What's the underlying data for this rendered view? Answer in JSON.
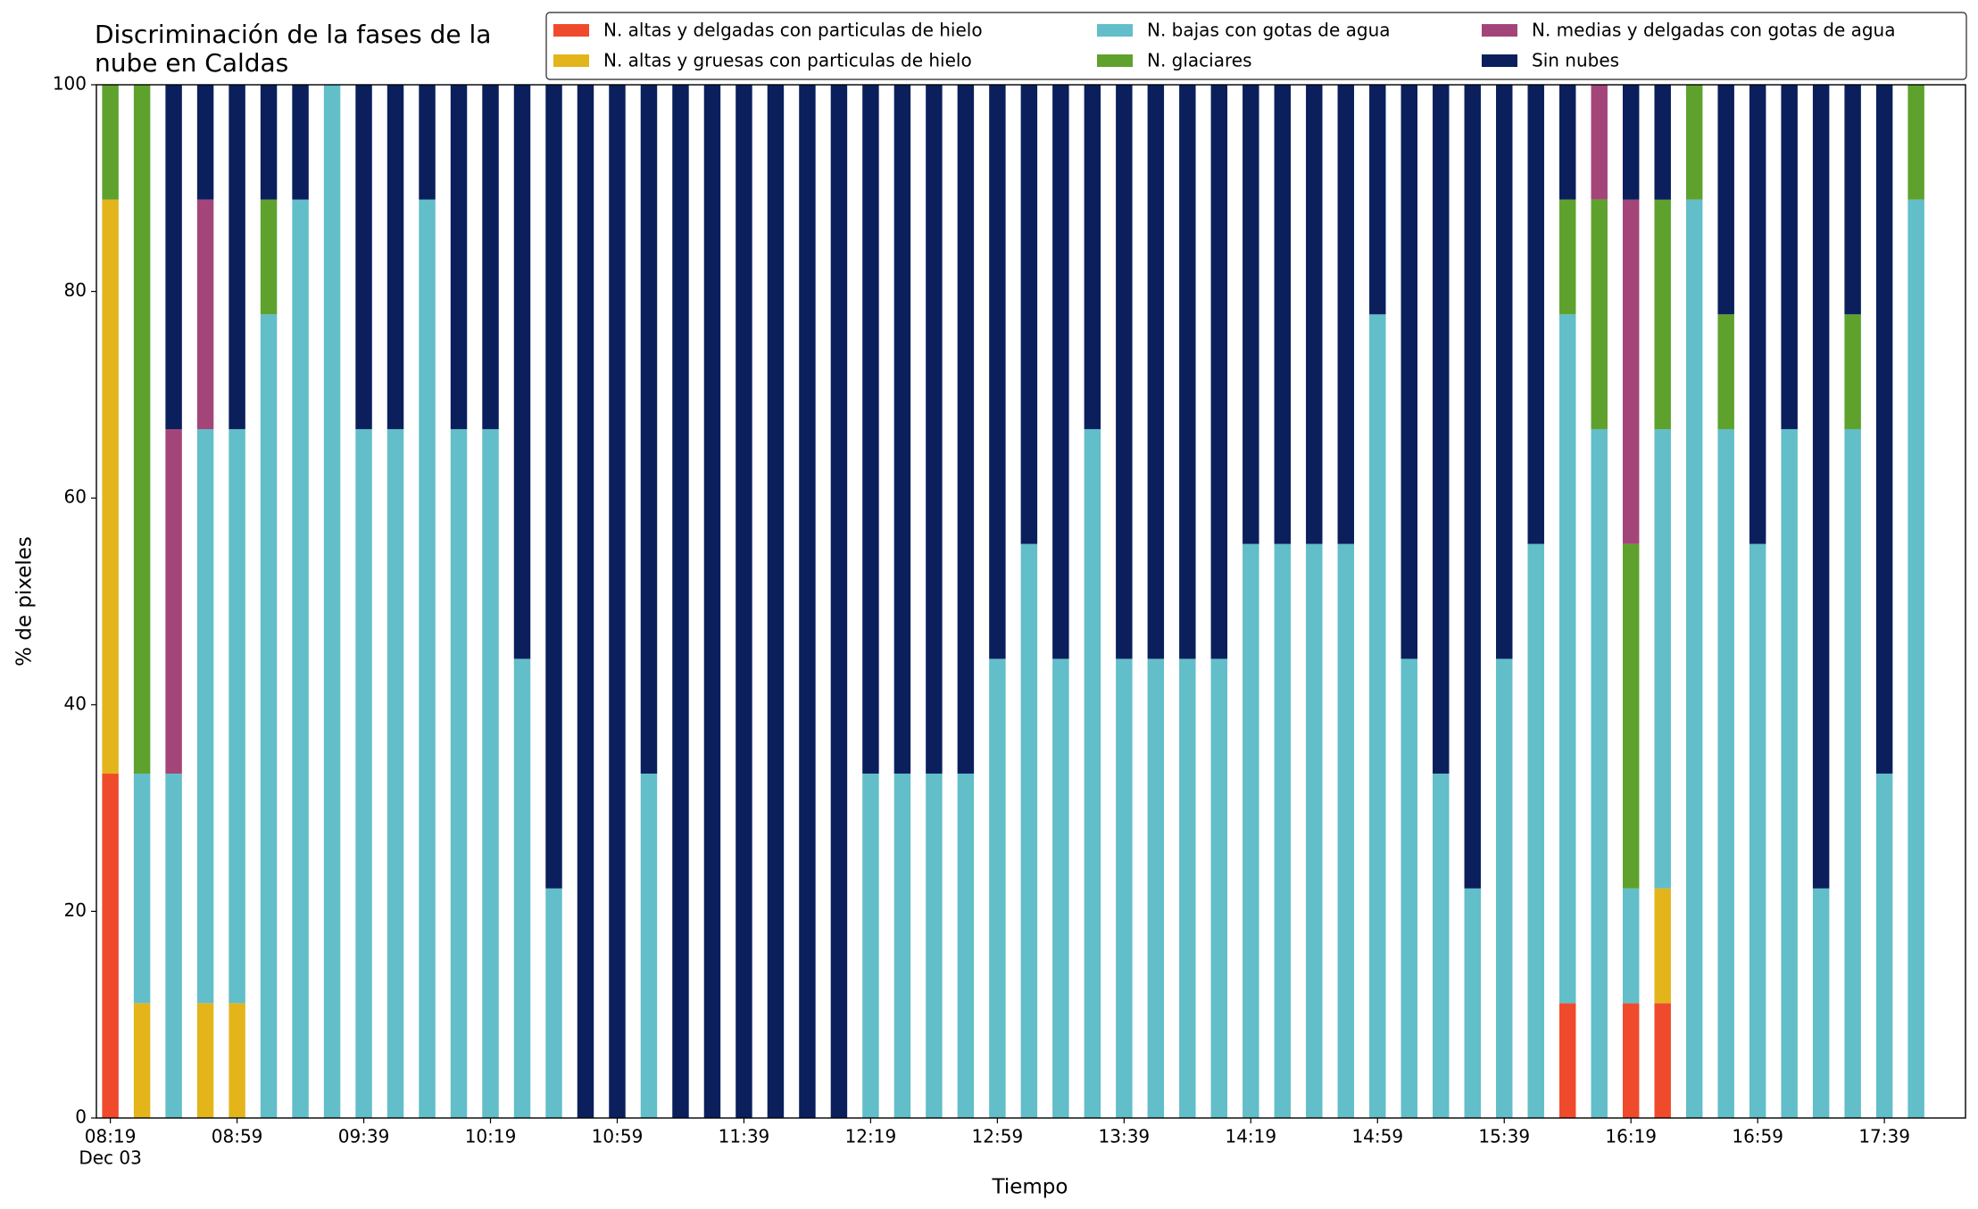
{
  "chart_data": {
    "type": "stacked_bar",
    "title": "Discriminación de la fases de la\nnube en Caldas",
    "x_label": "Tiempo",
    "y_label": "% de pixeles",
    "date_label": "Dec 03",
    "categories": [
      "08:19",
      null,
      null,
      null,
      "08:59",
      null,
      null,
      null,
      "09:39",
      null,
      null,
      null,
      "10:19",
      null,
      null,
      null,
      "10:59",
      null,
      null,
      null,
      "11:39",
      null,
      null,
      null,
      "12:19",
      null,
      null,
      null,
      "12:59",
      null,
      null,
      null,
      "13:39",
      null,
      null,
      null,
      "14:19",
      null,
      null,
      null,
      "14:59",
      null,
      null,
      null,
      "15:39",
      null,
      null,
      null,
      "16:19",
      null,
      null,
      null,
      "16:59",
      null,
      null,
      null,
      "17:39",
      null
    ],
    "ylim": [
      0,
      100
    ],
    "yticks": [
      0,
      20,
      40,
      60,
      80,
      100
    ],
    "series": [
      {
        "name": "N. altas y delgadas con particulas de hielo",
        "color": "#f04a2d",
        "values": [
          33.33,
          0,
          0,
          0,
          0,
          0,
          0,
          0,
          0,
          0,
          0,
          0,
          0,
          0,
          0,
          0,
          0,
          0,
          0,
          0,
          0,
          0,
          0,
          0,
          0,
          0,
          0,
          0,
          0,
          0,
          0,
          0,
          0,
          0,
          0,
          0,
          0,
          0,
          0,
          0,
          0,
          0,
          0,
          0,
          0,
          0,
          11.11,
          0,
          11.11,
          11.11,
          0,
          0,
          0,
          0,
          0,
          0,
          0,
          0
        ]
      },
      {
        "name": "N. altas y gruesas con particulas de hielo",
        "color": "#e3b51b",
        "values": [
          55.56,
          11.11,
          0,
          11.11,
          11.11,
          0,
          0,
          0,
          0,
          0,
          0,
          0,
          0,
          0,
          0,
          0,
          0,
          0,
          0,
          0,
          0,
          0,
          0,
          0,
          0,
          0,
          0,
          0,
          0,
          0,
          0,
          0,
          0,
          0,
          0,
          0,
          0,
          0,
          0,
          0,
          0,
          0,
          0,
          0,
          0,
          0,
          0,
          0,
          0,
          11.11,
          0,
          0,
          0,
          0,
          0,
          0,
          0,
          0
        ]
      },
      {
        "name": "N. bajas con gotas de agua",
        "color": "#62bec9",
        "values": [
          0,
          22.22,
          33.33,
          55.56,
          55.56,
          77.78,
          88.89,
          100,
          66.67,
          66.67,
          88.89,
          66.67,
          66.67,
          44.44,
          22.22,
          0,
          0,
          33.33,
          0,
          0,
          0,
          0,
          0,
          0,
          33.33,
          33.33,
          33.33,
          33.33,
          44.44,
          55.56,
          44.44,
          66.67,
          44.44,
          44.44,
          44.44,
          44.44,
          55.56,
          55.56,
          55.56,
          55.56,
          77.78,
          44.44,
          33.33,
          22.22,
          44.44,
          55.56,
          66.67,
          66.67,
          11.11,
          44.44,
          88.89,
          66.67,
          55.56,
          66.67,
          22.22,
          66.67,
          33.33,
          88.89
        ]
      },
      {
        "name": "N. glaciares",
        "color": "#5ea22d",
        "values": [
          11.11,
          66.67,
          0,
          0,
          0,
          11.11,
          0,
          0,
          0,
          0,
          0,
          0,
          0,
          0,
          0,
          0,
          0,
          0,
          0,
          0,
          0,
          0,
          0,
          0,
          0,
          0,
          0,
          0,
          0,
          0,
          0,
          0,
          0,
          0,
          0,
          0,
          0,
          0,
          0,
          0,
          0,
          0,
          0,
          0,
          0,
          0,
          11.11,
          22.22,
          33.33,
          22.22,
          11.11,
          11.11,
          0,
          0,
          0,
          11.11,
          0,
          11.11
        ]
      },
      {
        "name": "N. medias y delgadas con gotas de agua",
        "color": "#a4457a",
        "values": [
          0,
          0,
          33.33,
          22.22,
          0,
          0,
          0,
          0,
          0,
          0,
          0,
          0,
          0,
          0,
          0,
          0,
          0,
          0,
          0,
          0,
          0,
          0,
          0,
          0,
          0,
          0,
          0,
          0,
          0,
          0,
          0,
          0,
          0,
          0,
          0,
          0,
          0,
          0,
          0,
          0,
          0,
          0,
          0,
          0,
          0,
          0,
          0,
          11.11,
          33.33,
          0,
          0,
          0,
          0,
          0,
          0,
          0,
          0,
          0
        ]
      },
      {
        "name": "Sin nubes",
        "color": "#0a1f5c",
        "values": [
          0,
          0,
          33.33,
          11.11,
          33.33,
          11.11,
          11.11,
          0,
          33.33,
          33.33,
          11.11,
          33.33,
          33.33,
          55.56,
          77.78,
          100,
          100,
          66.67,
          100,
          100,
          100,
          100,
          100,
          100,
          66.67,
          66.67,
          66.67,
          66.67,
          55.56,
          44.44,
          55.56,
          33.33,
          55.56,
          55.56,
          55.56,
          55.56,
          44.44,
          44.44,
          44.44,
          44.44,
          22.22,
          55.56,
          66.67,
          77.78,
          55.56,
          44.44,
          11.11,
          0,
          11.11,
          11.11,
          0,
          22.22,
          44.44,
          33.33,
          77.78,
          22.22,
          66.67,
          0
        ]
      }
    ]
  }
}
